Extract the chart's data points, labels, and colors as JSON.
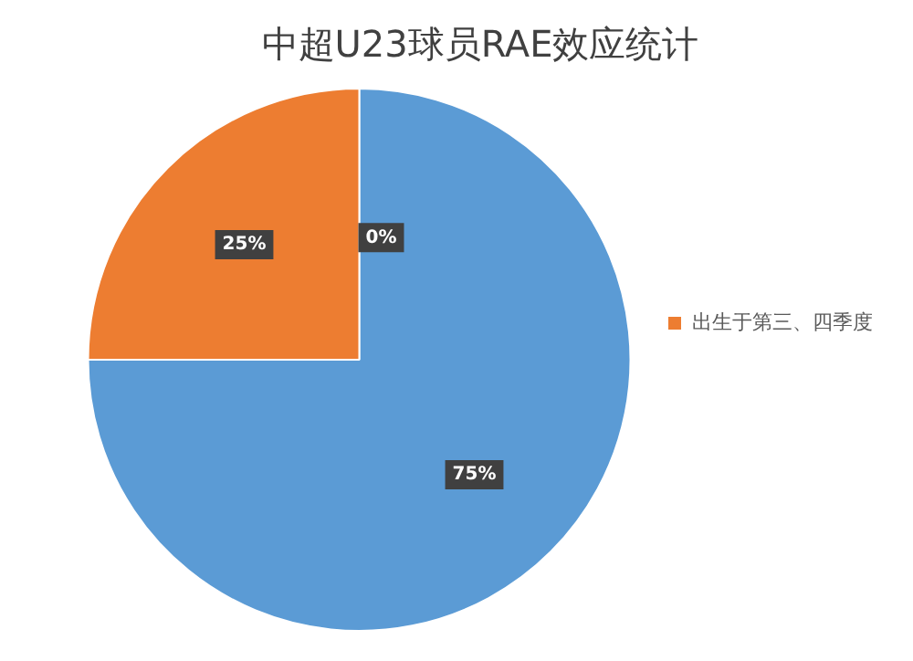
{
  "chart_data": {
    "type": "pie",
    "title": "中超U23球员RAE效应统计",
    "categories": [
      null,
      "出生于第三、四季度",
      null
    ],
    "values": [
      75,
      25,
      0
    ],
    "colors": [
      "#5b9bd5",
      "#ed7d31",
      "#a5a5a5"
    ],
    "value_labels": [
      "75%",
      "25%",
      "0%"
    ],
    "legend": "right"
  }
}
